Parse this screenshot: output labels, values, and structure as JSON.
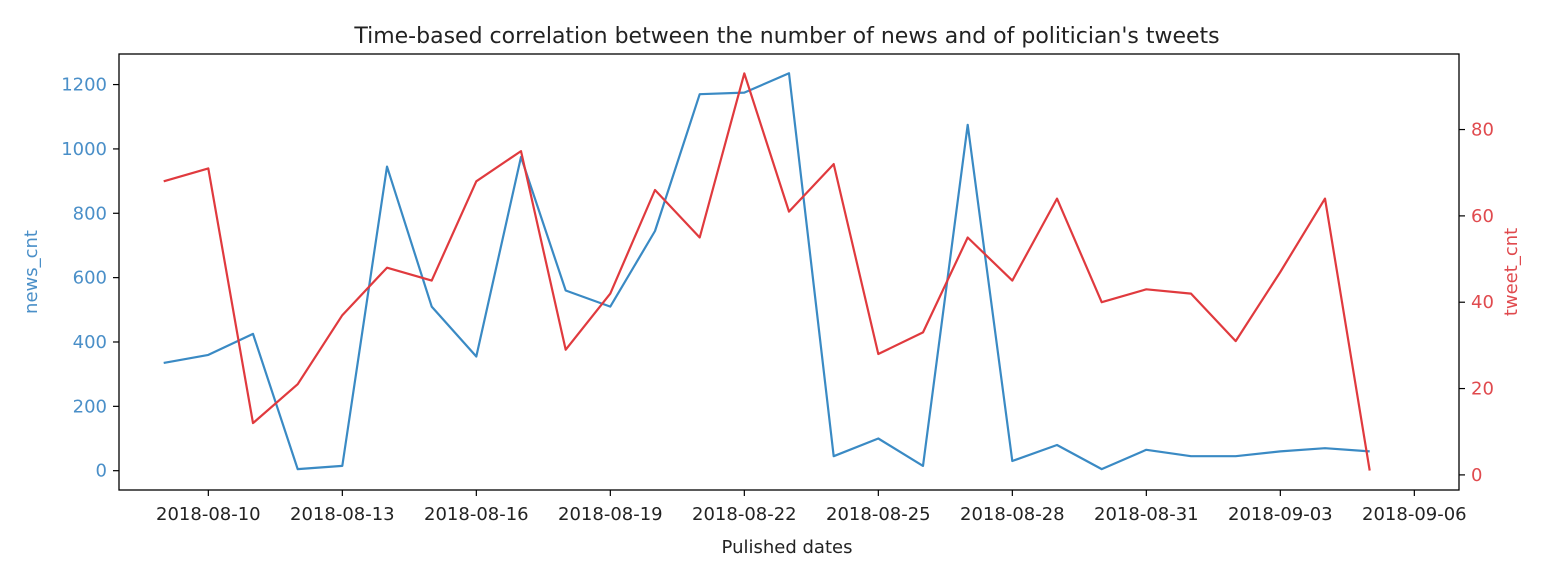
{
  "chart_data": {
    "type": "line",
    "title": "Time-based correlation between the number of news and of politician's tweets",
    "xlabel": "Pulished dates",
    "x_ticks": [
      "2018-08-10",
      "2018-08-13",
      "2018-08-16",
      "2018-08-19",
      "2018-08-22",
      "2018-08-25",
      "2018-08-28",
      "2018-08-31",
      "2018-09-03",
      "2018-09-06"
    ],
    "x_range": [
      "2018-08-08",
      "2018-09-07"
    ],
    "x": [
      "2018-08-09",
      "2018-08-10",
      "2018-08-11",
      "2018-08-12",
      "2018-08-13",
      "2018-08-14",
      "2018-08-15",
      "2018-08-16",
      "2018-08-17",
      "2018-08-18",
      "2018-08-19",
      "2018-08-20",
      "2018-08-21",
      "2018-08-22",
      "2018-08-23",
      "2018-08-24",
      "2018-08-25",
      "2018-08-26",
      "2018-08-27",
      "2018-08-28",
      "2018-08-29",
      "2018-08-30",
      "2018-08-31",
      "2018-09-01",
      "2018-09-02",
      "2018-09-03",
      "2018-09-04",
      "2018-09-05"
    ],
    "grid": false,
    "series": [
      {
        "name": "news_cnt",
        "axis": "left",
        "color": "#3a8ac4",
        "values": [
          335,
          360,
          425,
          5,
          15,
          945,
          510,
          355,
          975,
          560,
          510,
          745,
          1170,
          1175,
          1235,
          45,
          100,
          15,
          1075,
          30,
          80,
          5,
          65,
          45,
          45,
          60,
          70,
          60
        ]
      },
      {
        "name": "tweet_cnt",
        "axis": "right",
        "color": "#e03a3e",
        "values": [
          68,
          71,
          12,
          21,
          37,
          48,
          45,
          68,
          75,
          29,
          42,
          66,
          55,
          93,
          61,
          72,
          28,
          33,
          55,
          45,
          64,
          40,
          43,
          42,
          31,
          47,
          64,
          1
        ]
      }
    ],
    "y_left": {
      "label": "news_cnt",
      "ticks": [
        0,
        200,
        400,
        600,
        800,
        1000,
        1200
      ],
      "ylim": [
        -60,
        1295
      ],
      "color": "#4a8fc8"
    },
    "y_right": {
      "label": "tweet_cnt",
      "ticks": [
        0,
        20,
        40,
        60,
        80
      ],
      "ylim": [
        -3.5,
        97.5
      ],
      "color": "#e04a4e"
    }
  }
}
